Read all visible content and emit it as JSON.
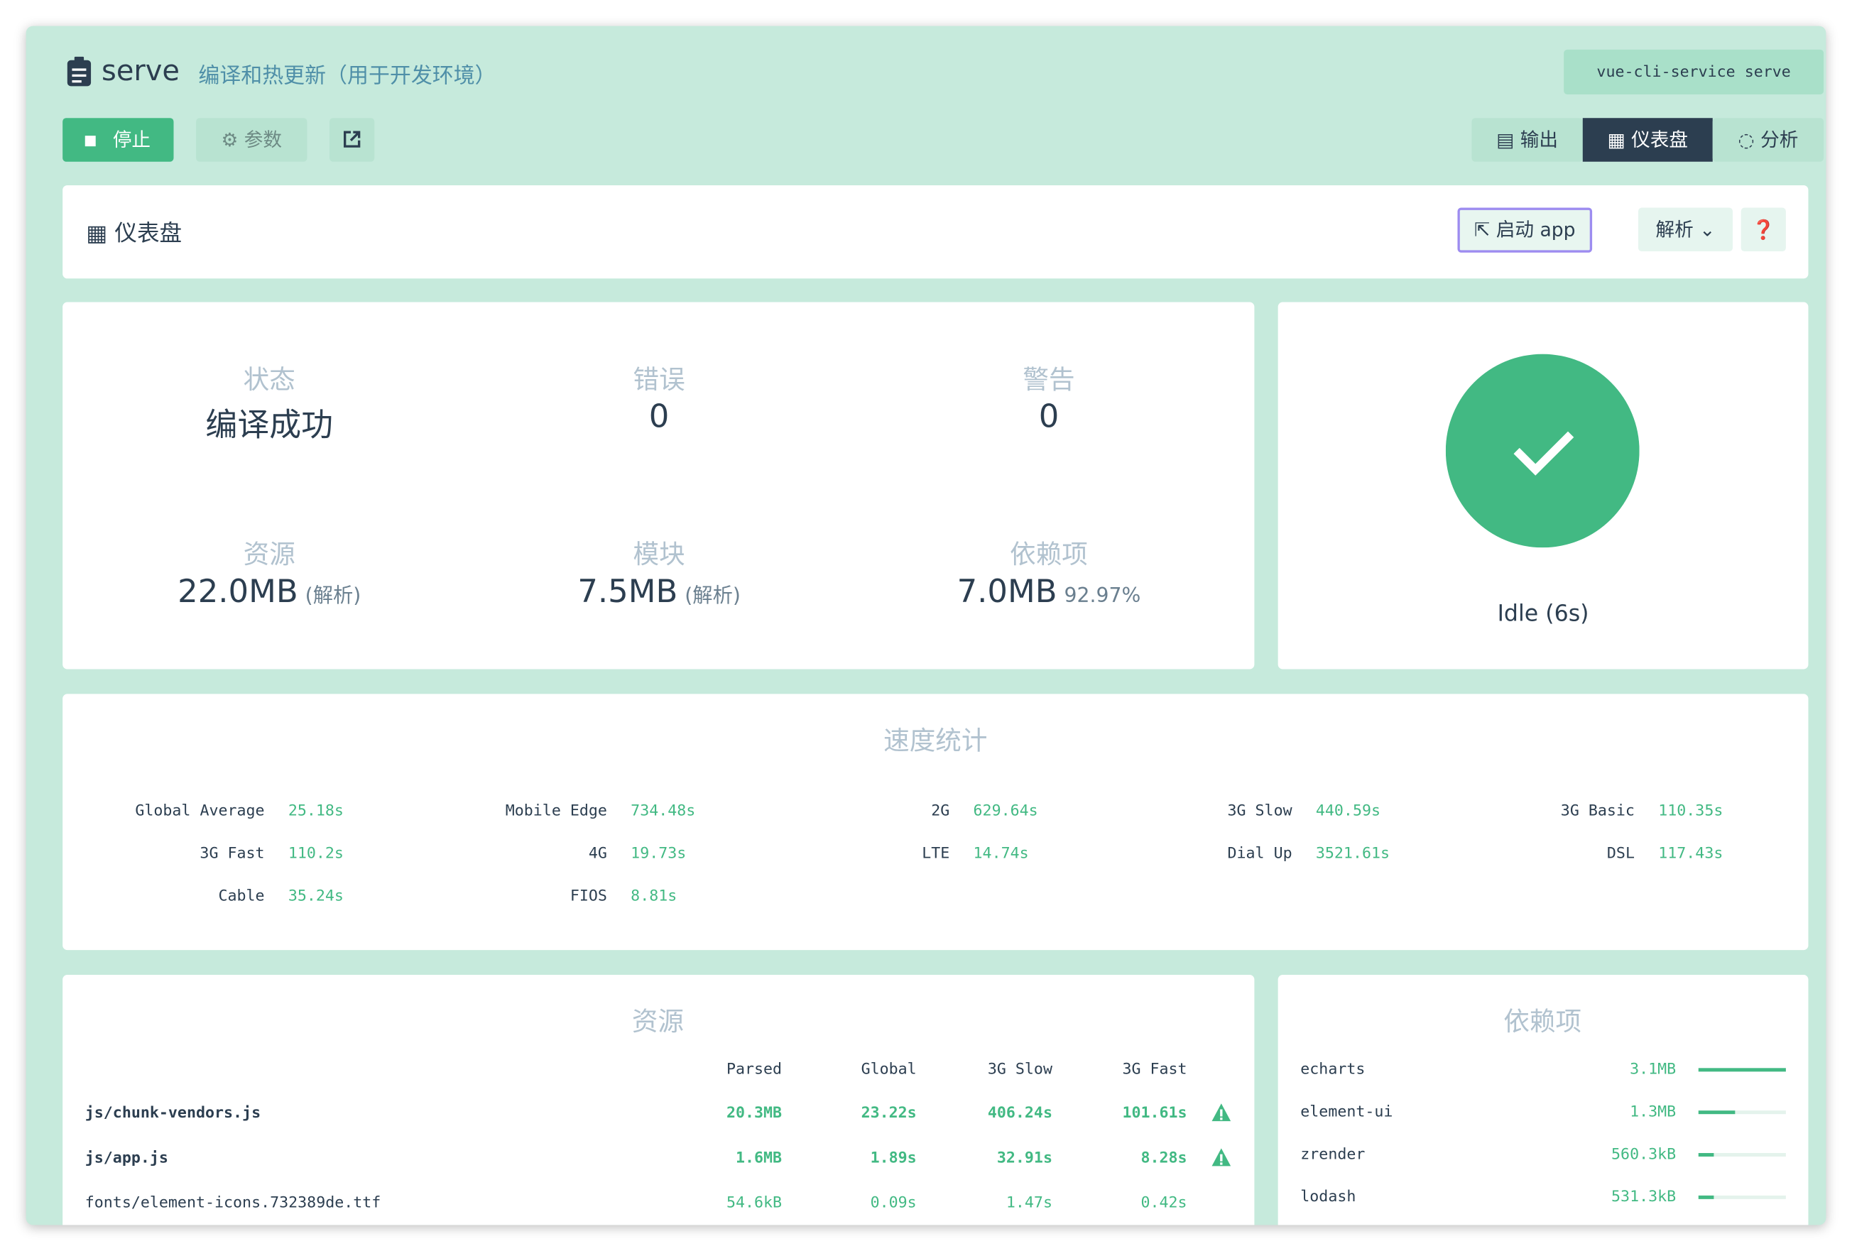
{
  "header": {
    "title": "serve",
    "description": "编译和热更新（用于开发环境）",
    "command": "vue-cli-service serve"
  },
  "toolbar": {
    "stop": "停止",
    "params": "参数"
  },
  "tabs": [
    "输出",
    "仪表盘",
    "分析"
  ],
  "panel": {
    "title": "仪表盘",
    "launch": "启动 app",
    "mode": "解析"
  },
  "stats": [
    {
      "label": "状态",
      "value": "编译成功"
    },
    {
      "label": "错误",
      "value": "0"
    },
    {
      "label": "警告",
      "value": "0"
    },
    {
      "label": "资源",
      "value": "22.0MB",
      "note": "(解析)"
    },
    {
      "label": "模块",
      "value": "7.5MB",
      "note": "(解析)"
    },
    {
      "label": "依赖项",
      "value": "7.0MB",
      "note": "92.97%"
    }
  ],
  "status": "Idle (6s)",
  "speed": {
    "title": "速度统计",
    "items": [
      [
        "Global Average",
        "25.18s"
      ],
      [
        "Mobile Edge",
        "734.48s"
      ],
      [
        "2G",
        "629.64s"
      ],
      [
        "3G Slow",
        "440.59s"
      ],
      [
        "3G Basic",
        "110.35s"
      ],
      [
        "3G Fast",
        "110.2s"
      ],
      [
        "4G",
        "19.73s"
      ],
      [
        "LTE",
        "14.74s"
      ],
      [
        "Dial Up",
        "3521.61s"
      ],
      [
        "DSL",
        "117.43s"
      ],
      [
        "Cable",
        "35.24s"
      ],
      [
        "FIOS",
        "8.81s"
      ]
    ]
  },
  "assets": {
    "title": "资源",
    "columns": [
      "Parsed",
      "Global",
      "3G Slow",
      "3G Fast"
    ],
    "rows": [
      [
        "js/chunk-vendors.js",
        "20.3MB",
        "23.22s",
        "406.24s",
        "101.61s"
      ],
      [
        "js/app.js",
        "1.6MB",
        "1.89s",
        "32.91s",
        "8.28s"
      ],
      [
        "fonts/element-icons.732389de.ttf",
        "54.6kB",
        "0.09s",
        "1.47s",
        "0.42s"
      ]
    ]
  },
  "deps": {
    "title": "依赖项",
    "rows": [
      [
        "echarts",
        "3.1MB"
      ],
      [
        "element-ui",
        "1.3MB"
      ],
      [
        "zrender",
        "560.3kB"
      ],
      [
        "lodash",
        "531.3kB"
      ]
    ]
  }
}
